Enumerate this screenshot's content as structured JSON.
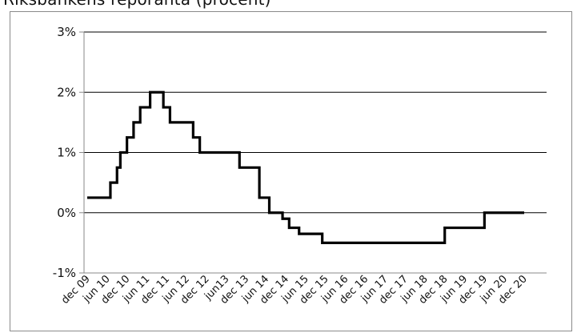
{
  "title": "Riksbankens reporänta (procent)",
  "chart_data": {
    "type": "line",
    "ylim": [
      -1,
      3
    ],
    "y_ticks": [
      "3%",
      "2%",
      "1%",
      "0%",
      "-1%"
    ],
    "y_tick_values": [
      3,
      2,
      1,
      0,
      -1
    ],
    "grid": "horizontal",
    "x_ticks": [
      "dec 09",
      "jun 10",
      "dec 10",
      "jun 11",
      "dec 11",
      "jun 12",
      "dec 12",
      "jun13",
      "dec 13",
      "jun 14",
      "dec 14",
      "jun 15",
      "dec 15",
      "jun 16",
      "dec 16",
      "jun 17",
      "dec 17",
      "jun 18",
      "dec 18",
      "jun 19",
      "dec 19",
      "jun 20",
      "dec 20"
    ],
    "series": [
      {
        "color": "#000000",
        "x": [
          "dec 09",
          "jan 10",
          "feb 10",
          "mar 10",
          "apr 10",
          "may 10",
          "jun 10",
          "jul 10",
          "aug 10",
          "sep 10",
          "oct 10",
          "nov 10",
          "dec 10",
          "jan 11",
          "feb 11",
          "mar 11",
          "apr 11",
          "may 11",
          "jun 11",
          "jul 11",
          "aug 11",
          "sep 11",
          "oct 11",
          "nov 11",
          "dec 11",
          "jan 12",
          "feb 12",
          "mar 12",
          "apr 12",
          "may 12",
          "jun 12",
          "jul 12",
          "aug 12",
          "sep 12",
          "oct 12",
          "nov 12",
          "dec 12",
          "jan 13",
          "feb 13",
          "mar 13",
          "apr 13",
          "may 13",
          "jun 13",
          "jul 13",
          "aug 13",
          "sep 13",
          "oct 13",
          "nov 13",
          "dec 13",
          "jan 14",
          "feb 14",
          "mar 14",
          "apr 14",
          "may 14",
          "jun 14",
          "jul 14",
          "aug 14",
          "sep 14",
          "oct 14",
          "nov 14",
          "dec 14",
          "jan 15",
          "feb 15",
          "mar 15",
          "apr 15",
          "may 15",
          "jun 15",
          "jul 15",
          "aug 15",
          "sep 15",
          "oct 15",
          "nov 15",
          "dec 15",
          "jan 16",
          "feb 16",
          "mar 16",
          "apr 16",
          "may 16",
          "jun 16",
          "jul 16",
          "aug 16",
          "sep 16",
          "oct 16",
          "nov 16",
          "dec 16",
          "jan 17",
          "feb 17",
          "mar 17",
          "apr 17",
          "may 17",
          "jun 17",
          "jul 17",
          "aug 17",
          "sep 17",
          "oct 17",
          "nov 17",
          "dec 17",
          "jan 18",
          "feb 18",
          "mar 18",
          "apr 18",
          "may 18",
          "jun 18",
          "jul 18",
          "aug 18",
          "sep 18",
          "oct 18",
          "nov 18",
          "dec 18",
          "jan 19",
          "feb 19",
          "mar 19",
          "apr 19",
          "may 19",
          "jun 19",
          "jul 19",
          "aug 19",
          "sep 19",
          "oct 19",
          "nov 19",
          "dec 19",
          "jan 20",
          "feb 20",
          "mar 20",
          "apr 20",
          "may 20",
          "jun 20",
          "jul 20",
          "aug 20",
          "sep 20",
          "oct 20",
          "nov 20",
          "dec 20"
        ],
        "values": [
          0.25,
          0.25,
          0.25,
          0.25,
          0.25,
          0.25,
          0.25,
          0.5,
          0.5,
          0.75,
          1.0,
          1.0,
          1.25,
          1.25,
          1.5,
          1.5,
          1.75,
          1.75,
          1.75,
          2.0,
          2.0,
          2.0,
          2.0,
          1.75,
          1.75,
          1.5,
          1.5,
          1.5,
          1.5,
          1.5,
          1.5,
          1.5,
          1.25,
          1.25,
          1.0,
          1.0,
          1.0,
          1.0,
          1.0,
          1.0,
          1.0,
          1.0,
          1.0,
          1.0,
          1.0,
          1.0,
          0.75,
          0.75,
          0.75,
          0.75,
          0.75,
          0.75,
          0.25,
          0.25,
          0.25,
          0.0,
          0.0,
          0.0,
          0.0,
          -0.1,
          -0.1,
          -0.25,
          -0.25,
          -0.25,
          -0.35,
          -0.35,
          -0.35,
          -0.35,
          -0.35,
          -0.35,
          -0.35,
          -0.5,
          -0.5,
          -0.5,
          -0.5,
          -0.5,
          -0.5,
          -0.5,
          -0.5,
          -0.5,
          -0.5,
          -0.5,
          -0.5,
          -0.5,
          -0.5,
          -0.5,
          -0.5,
          -0.5,
          -0.5,
          -0.5,
          -0.5,
          -0.5,
          -0.5,
          -0.5,
          -0.5,
          -0.5,
          -0.5,
          -0.5,
          -0.5,
          -0.5,
          -0.5,
          -0.5,
          -0.5,
          -0.5,
          -0.5,
          -0.5,
          -0.5,
          -0.5,
          -0.25,
          -0.25,
          -0.25,
          -0.25,
          -0.25,
          -0.25,
          -0.25,
          -0.25,
          -0.25,
          -0.25,
          -0.25,
          -0.25,
          0.0,
          0.0,
          0.0,
          0.0,
          0.0,
          0.0,
          0.0,
          0.0,
          0.0,
          0.0,
          0.0,
          0.0,
          0.0
        ]
      }
    ]
  }
}
